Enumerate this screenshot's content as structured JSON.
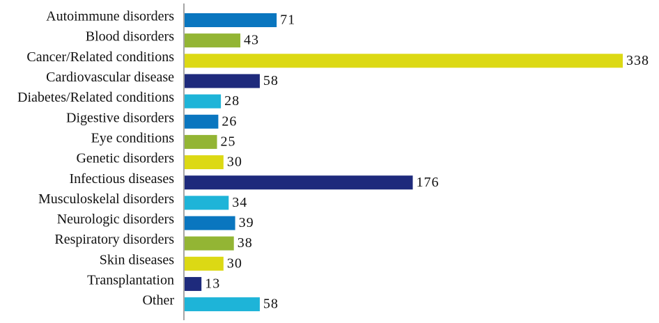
{
  "chart_data": {
    "type": "bar",
    "orientation": "horizontal",
    "categories": [
      "Autoimmune disorders",
      "Blood disorders",
      "Cancer/Related conditions",
      "Cardiovascular disease",
      "Diabetes/Related conditions",
      "Digestive disorders",
      "Eye conditions",
      "Genetic disorders",
      "Infectious diseases",
      "Musculoskelal disorders",
      "Neurologic disorders",
      "Respiratory disorders",
      "Skin diseases",
      "Transplantation",
      "Other"
    ],
    "values": [
      71,
      43,
      338,
      58,
      28,
      26,
      25,
      30,
      176,
      34,
      39,
      38,
      30,
      13,
      58
    ],
    "colors": [
      "#0a76bf",
      "#93b534",
      "#dcd914",
      "#1e2a7c",
      "#1eb4d8",
      "#0a76bf",
      "#93b534",
      "#dcd914",
      "#1e2a7c",
      "#1eb4d8",
      "#0a76bf",
      "#93b534",
      "#dcd914",
      "#1e2a7c",
      "#1eb4d8"
    ],
    "data_labels": true
  }
}
